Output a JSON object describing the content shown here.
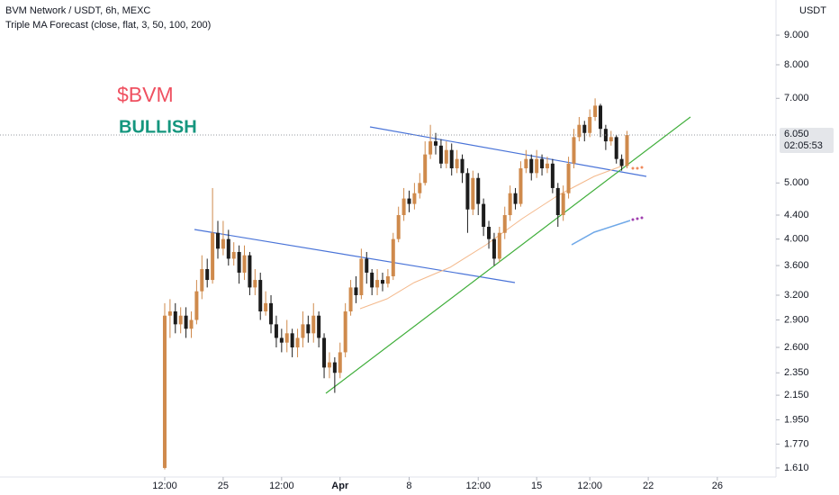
{
  "chart_data": {
    "type": "candlestick",
    "title": "BVM Network / USDT, 6h, MEXC",
    "subtitle": "Triple MA Forecast (close, flat, 3, 50, 100, 200)",
    "annotations": [
      "$BVM",
      "BULLISH"
    ],
    "y_axis_label": "USDT",
    "last_price": {
      "value": 6.05,
      "label": "6.050"
    },
    "countdown": "02:05:53",
    "up_color": "#cf8a4c",
    "down_color": "#1c1c1c",
    "log_scale": true,
    "ylim": [
      1.553,
      10.35
    ],
    "yticks": [
      {
        "value": 9,
        "label": "9.000"
      },
      {
        "value": 8,
        "label": "8.000"
      },
      {
        "value": 7,
        "label": "7.000"
      },
      {
        "value": 5,
        "label": "5.000"
      },
      {
        "value": 4.4,
        "label": "4.400"
      },
      {
        "value": 4,
        "label": "4.000"
      },
      {
        "value": 3.6,
        "label": "3.600"
      },
      {
        "value": 3.2,
        "label": "3.200"
      },
      {
        "value": 2.9,
        "label": "2.900"
      },
      {
        "value": 2.6,
        "label": "2.600"
      },
      {
        "value": 2.35,
        "label": "2.350"
      },
      {
        "value": 2.15,
        "label": "2.150"
      },
      {
        "value": 1.95,
        "label": "1.950"
      },
      {
        "value": 1.77,
        "label": "1.770"
      },
      {
        "value": 1.61,
        "label": "1.610"
      }
    ],
    "xlim": [
      -31,
      114.7
    ],
    "xticks": [
      {
        "value": 0,
        "label": "12:00"
      },
      {
        "value": 11,
        "label": "25"
      },
      {
        "value": 22,
        "label": "12:00"
      },
      {
        "value": 33,
        "label": "Apr"
      },
      {
        "value": 46,
        "label": "8"
      },
      {
        "value": 59,
        "label": "12:00"
      },
      {
        "value": 70,
        "label": "15"
      },
      {
        "value": 80,
        "label": "12:00"
      },
      {
        "value": 91,
        "label": "22"
      },
      {
        "value": 104,
        "label": "26"
      }
    ],
    "open": [
      1.61,
      2.95,
      3.0,
      2.85,
      2.95,
      2.8,
      2.9,
      3.25,
      3.55,
      3.4,
      4.1,
      3.85,
      4.0,
      3.7,
      3.8,
      3.5,
      3.75,
      3.3,
      3.4,
      3.0,
      3.1,
      2.85,
      2.7,
      2.65,
      2.75,
      2.6,
      2.7,
      2.85,
      2.75,
      2.95,
      2.7,
      2.4,
      2.45,
      2.35,
      2.55,
      3.0,
      3.3,
      3.2,
      3.7,
      3.5,
      3.3,
      3.4,
      3.35,
      3.45,
      4.0,
      4.4,
      4.7,
      4.6,
      4.8,
      5.0,
      5.6,
      5.9,
      5.8,
      5.4,
      5.7,
      5.3,
      5.5,
      5.2,
      4.5,
      5.1,
      4.6,
      4.2,
      4.0,
      3.7,
      4.1,
      4.4,
      4.8,
      4.6,
      5.3,
      5.5,
      5.2,
      5.5,
      5.3,
      5.4,
      4.9,
      4.4,
      4.8,
      5.4,
      6.0,
      6.3,
      6.1,
      6.5,
      6.8,
      6.2,
      5.9,
      6.0,
      5.5,
      5.35
    ],
    "high": [
      3.1,
      3.15,
      3.1,
      3.05,
      3.05,
      3.0,
      3.4,
      3.75,
      3.7,
      4.9,
      4.3,
      4.3,
      4.15,
      3.95,
      3.9,
      3.9,
      3.8,
      3.55,
      3.5,
      3.25,
      3.2,
      2.95,
      2.8,
      2.9,
      2.8,
      2.8,
      3.0,
      2.95,
      3.1,
      3.0,
      2.75,
      2.55,
      2.5,
      2.65,
      3.1,
      3.4,
      3.45,
      3.85,
      3.8,
      3.55,
      3.55,
      3.5,
      3.55,
      4.1,
      4.55,
      4.9,
      4.85,
      5.0,
      5.2,
      5.9,
      6.3,
      6.1,
      5.95,
      5.9,
      5.85,
      5.7,
      5.6,
      5.3,
      5.25,
      5.2,
      4.7,
      4.3,
      4.1,
      4.2,
      4.55,
      4.95,
      4.9,
      5.45,
      5.7,
      5.6,
      5.7,
      5.6,
      5.55,
      5.5,
      5.0,
      4.95,
      5.55,
      6.2,
      6.5,
      6.4,
      6.7,
      7.0,
      6.85,
      6.3,
      6.15,
      6.05,
      5.6,
      6.15
    ],
    "low": [
      1.6,
      2.7,
      2.75,
      2.75,
      2.7,
      2.7,
      2.85,
      3.15,
      3.3,
      3.35,
      3.7,
      3.75,
      3.6,
      3.6,
      3.35,
      3.4,
      3.2,
      3.2,
      2.9,
      2.95,
      2.75,
      2.6,
      2.55,
      2.55,
      2.5,
      2.5,
      2.6,
      2.65,
      2.65,
      2.6,
      2.3,
      2.3,
      2.17,
      2.3,
      2.5,
      2.95,
      3.1,
      3.15,
      3.35,
      3.2,
      3.2,
      3.25,
      3.3,
      3.4,
      3.95,
      4.3,
      4.45,
      4.5,
      4.7,
      4.95,
      5.5,
      5.6,
      5.3,
      5.3,
      5.15,
      5.2,
      5.0,
      4.1,
      4.4,
      4.4,
      4.05,
      3.85,
      3.6,
      3.65,
      4.0,
      4.3,
      4.5,
      4.55,
      5.2,
      5.05,
      5.1,
      5.15,
      5.2,
      4.8,
      4.2,
      4.3,
      4.7,
      5.3,
      5.9,
      5.9,
      6.0,
      6.4,
      6.0,
      5.7,
      5.8,
      5.4,
      5.25,
      5.3
    ],
    "close": [
      2.95,
      3.0,
      2.85,
      2.95,
      2.8,
      2.9,
      3.25,
      3.55,
      3.4,
      4.1,
      3.85,
      4.0,
      3.7,
      3.8,
      3.5,
      3.75,
      3.3,
      3.4,
      3.0,
      3.1,
      2.85,
      2.7,
      2.65,
      2.75,
      2.6,
      2.7,
      2.85,
      2.75,
      2.95,
      2.7,
      2.4,
      2.45,
      2.35,
      2.55,
      3.0,
      3.3,
      3.2,
      3.7,
      3.5,
      3.3,
      3.4,
      3.35,
      3.45,
      4.0,
      4.4,
      4.7,
      4.6,
      4.8,
      5.0,
      5.6,
      5.9,
      5.8,
      5.4,
      5.7,
      5.3,
      5.5,
      5.2,
      4.5,
      5.1,
      4.6,
      4.2,
      4.0,
      3.7,
      4.1,
      4.4,
      4.8,
      4.6,
      5.3,
      5.5,
      5.2,
      5.5,
      5.3,
      5.4,
      4.9,
      4.4,
      4.8,
      5.4,
      6.0,
      6.3,
      6.1,
      6.5,
      6.8,
      6.2,
      5.9,
      6.0,
      5.5,
      5.35,
      6.05
    ]
  }
}
